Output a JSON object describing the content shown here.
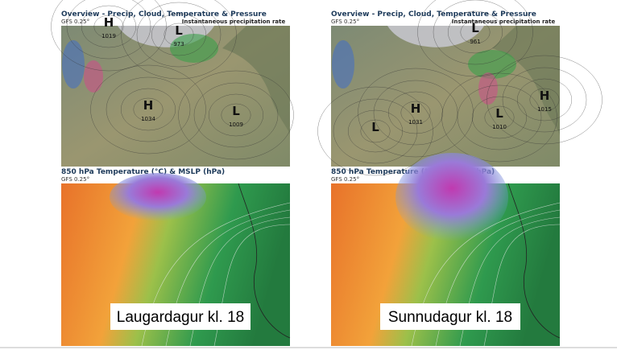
{
  "panels": [
    {
      "overview": {
        "title": "Overview - Precip, Cloud, Temperature & Pressure",
        "model": "GFS 0.25°",
        "subtitle": "Instantaneous precipitation rate",
        "centers": [
          {
            "symbol": "H",
            "value": 1019
          },
          {
            "symbol": "L",
            "value": 973
          },
          {
            "symbol": "H",
            "value": 1034
          },
          {
            "symbol": "L",
            "value": 1009
          }
        ]
      },
      "temperature": {
        "title": "850 hPa Temperature (°C) & MSLP (hPa)",
        "model": "GFS 0.25°"
      },
      "caption": "Laugardagur kl. 18"
    },
    {
      "overview": {
        "title": "Overview - Precip, Cloud, Temperature & Pressure",
        "model": "GFS 0.25°",
        "subtitle": "Instantaneous precipitation rate",
        "centers": [
          {
            "symbol": "L",
            "value": 961
          },
          {
            "symbol": "H",
            "value": 1031
          },
          {
            "symbol": "L",
            "value": 1010
          },
          {
            "symbol": "H",
            "value": 1015
          },
          {
            "symbol": "L"
          }
        ]
      },
      "temperature": {
        "title": "850 hPa Temperature (°C) & MSLP (hPa)",
        "model": "GFS 0.25°"
      },
      "caption": "Sunnudagur kl. 18"
    }
  ]
}
